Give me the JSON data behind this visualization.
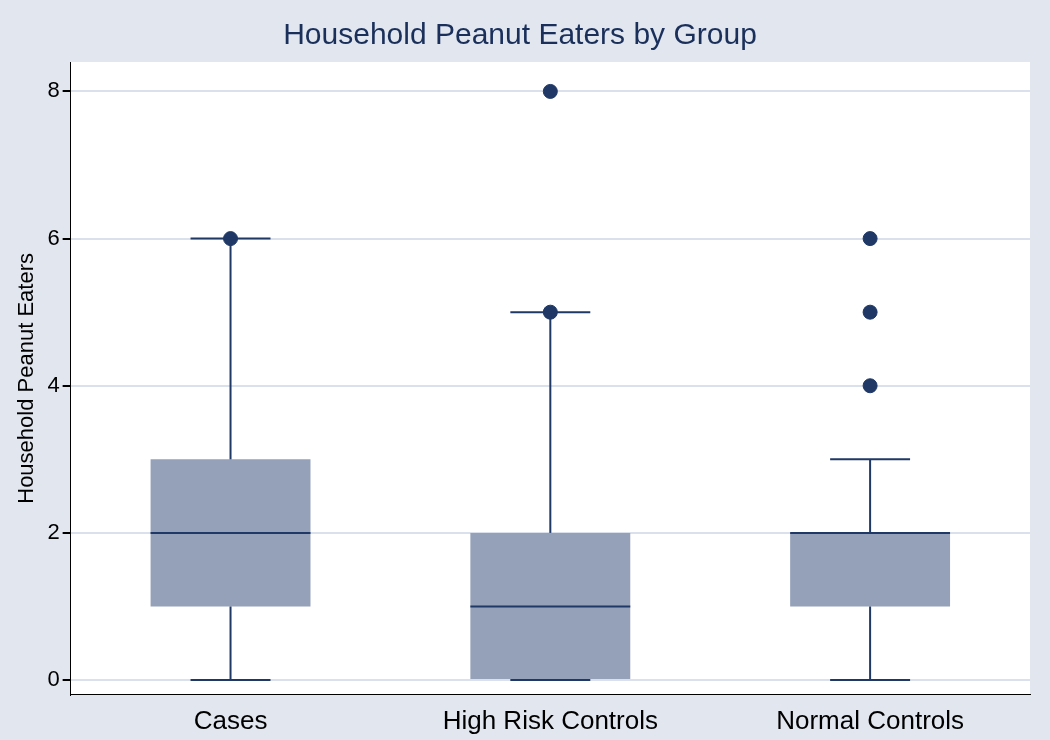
{
  "chart_data": {
    "type": "box",
    "title": "Household Peanut Eaters by Group",
    "ylabel": "Household Peanut Eaters",
    "categories": [
      "Cases",
      "High Risk Controls",
      "Normal Controls"
    ],
    "series": [
      {
        "color": "#95a1b8",
        "boxes": [
          {
            "low": 0,
            "q1": 1,
            "median": 2,
            "q3": 3,
            "high": 6,
            "outliers": [
              6
            ]
          },
          {
            "low": 0,
            "q1": 0,
            "median": 1,
            "q3": 2,
            "high": 5,
            "outliers": [
              5,
              8
            ]
          },
          {
            "low": 0,
            "q1": 1,
            "median": 2,
            "q3": 2,
            "high": 3,
            "outliers": [
              4,
              5,
              6
            ]
          }
        ]
      }
    ],
    "ylim": [
      -0.2,
      8.4
    ],
    "yticks": [
      0,
      2,
      4,
      6,
      8
    ],
    "grid": "y",
    "marker": "circle"
  }
}
